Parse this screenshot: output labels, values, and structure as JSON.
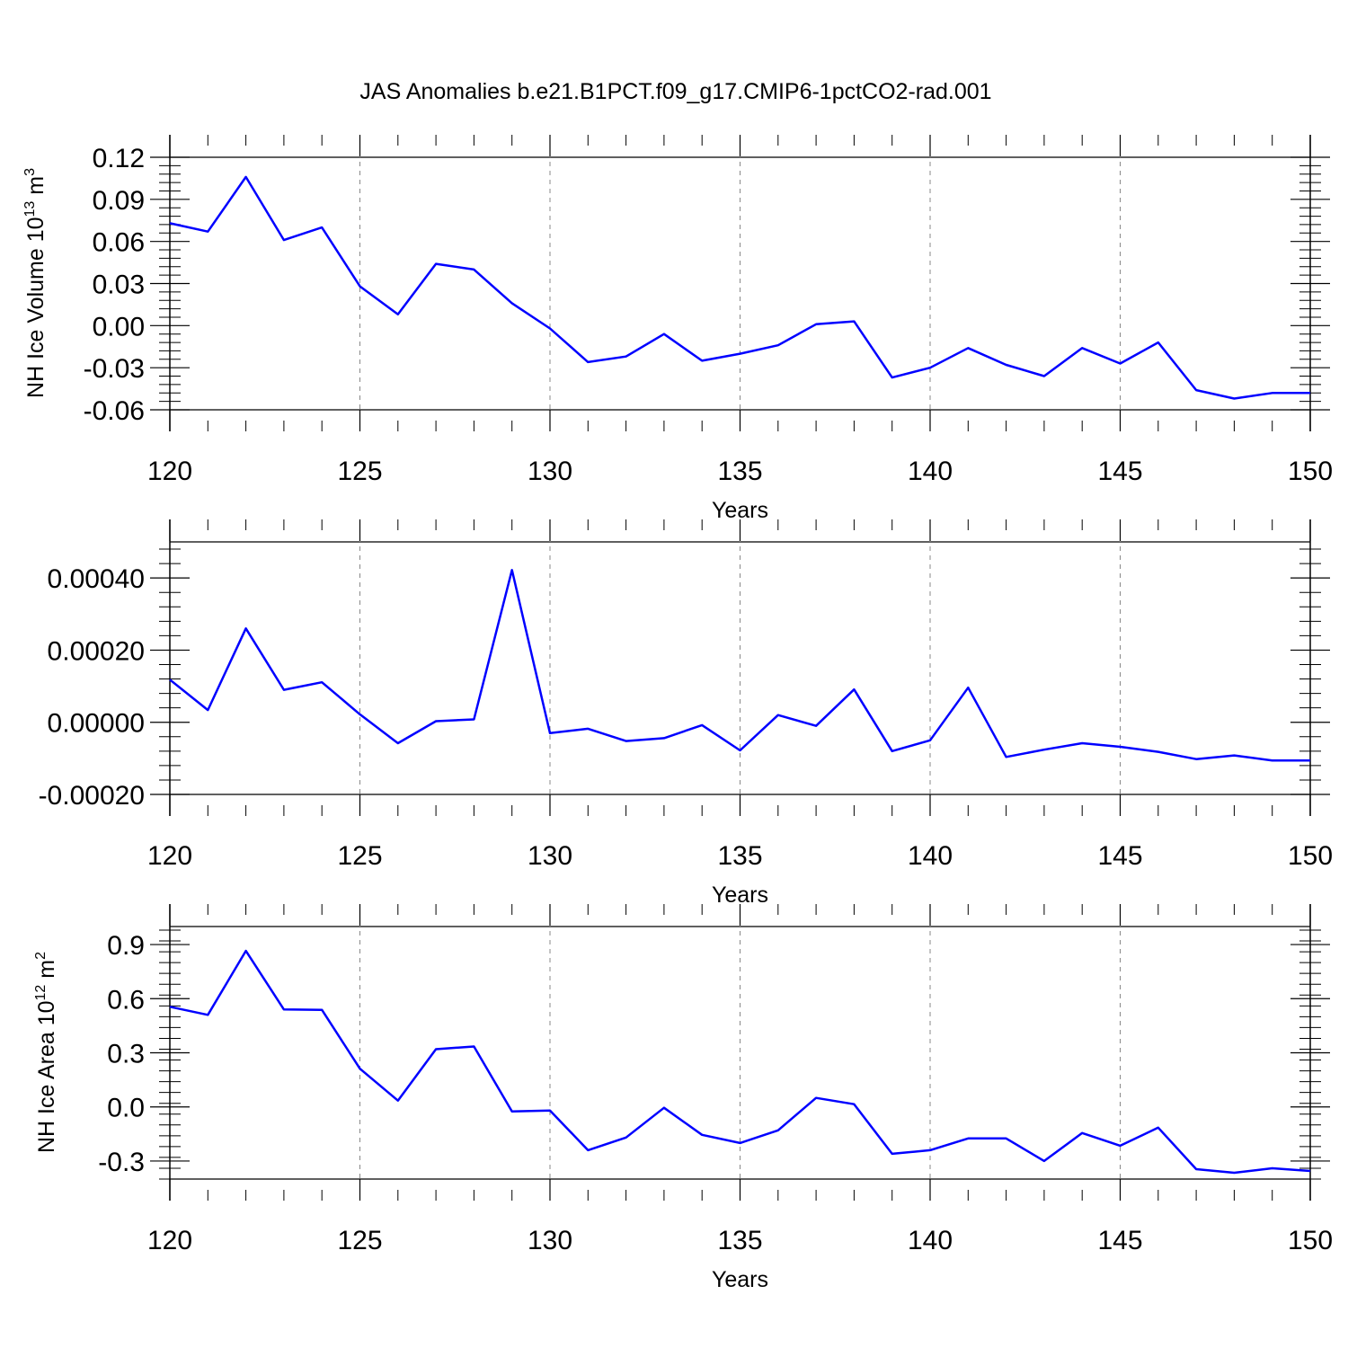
{
  "figure": {
    "title": "JAS Anomalies b.e21.B1PCT.f09_g17.CMIP6-1pctCO2-rad.001",
    "line_color": "#0000ff",
    "grid_color": "#888888",
    "axis_color": "#000000"
  },
  "chart_data": [
    {
      "type": "line",
      "title": "JAS Anomalies b.e21.B1PCT.f09_g17.CMIP6-1pctCO2-rad.001",
      "xlabel": "Years",
      "ylabel_parts": [
        "NH Ice Volume 10",
        "13",
        " m",
        "3"
      ],
      "xlim": [
        120,
        150
      ],
      "ylim": [
        -0.06,
        0.12
      ],
      "xticks": [
        "120",
        "125",
        "130",
        "135",
        "140",
        "145",
        "150"
      ],
      "yticks": [
        "0.12",
        "0.09",
        "0.06",
        "0.03",
        "0.00",
        "-0.03",
        "-0.06"
      ],
      "x": [
        120,
        121,
        122,
        123,
        124,
        125,
        126,
        127,
        128,
        129,
        130,
        131,
        132,
        133,
        134,
        135,
        136,
        137,
        138,
        139,
        140,
        141,
        142,
        143,
        144,
        145,
        146,
        147,
        148,
        149,
        150
      ],
      "values": [
        0.073,
        0.067,
        0.106,
        0.061,
        0.07,
        0.028,
        0.008,
        0.044,
        0.04,
        0.016,
        -0.002,
        -0.026,
        -0.022,
        -0.006,
        -0.025,
        -0.02,
        -0.014,
        0.001,
        0.003,
        -0.037,
        -0.03,
        -0.016,
        -0.028,
        -0.036,
        -0.016,
        -0.027,
        -0.012,
        -0.046,
        -0.052,
        -0.048,
        -0.048
      ]
    },
    {
      "type": "line",
      "title": "",
      "xlabel": "Years",
      "ylabel_parts": [],
      "xlim": [
        120,
        150
      ],
      "ylim": [
        -0.0002,
        0.0005
      ],
      "xticks": [
        "120",
        "125",
        "130",
        "135",
        "140",
        "145",
        "150"
      ],
      "yticks": [
        "0.00040",
        "0.00020",
        "0.00000",
        "-0.00020"
      ],
      "ytick_values": [
        0.0004,
        0.0002,
        0.0,
        -0.0002
      ],
      "x": [
        120,
        121,
        122,
        123,
        124,
        125,
        126,
        127,
        128,
        129,
        130,
        131,
        132,
        133,
        134,
        135,
        136,
        137,
        138,
        139,
        140,
        141,
        142,
        143,
        144,
        145,
        146,
        147,
        148,
        149,
        150
      ],
      "values": [
        0.000118,
        3.4e-05,
        0.00026,
        9e-05,
        0.000111,
        2.2e-05,
        -5.8e-05,
        3e-06,
        8e-06,
        0.000422,
        -3e-05,
        -1.8e-05,
        -5.2e-05,
        -4.4e-05,
        -8e-06,
        -7.8e-05,
        2e-05,
        -1e-05,
        9.1e-05,
        -8e-05,
        -5e-05,
        9.6e-05,
        -9.6e-05,
        -7.6e-05,
        -5.8e-05,
        -6.8e-05,
        -8.2e-05,
        -0.000102,
        -9.2e-05,
        -0.000106,
        -0.000106
      ]
    },
    {
      "type": "line",
      "title": "",
      "xlabel": "Years",
      "ylabel_parts": [
        "NH Ice Area 10",
        "12",
        " m",
        "2"
      ],
      "xlim": [
        120,
        150
      ],
      "ylim": [
        -0.4,
        1.0
      ],
      "xticks": [
        "120",
        "125",
        "130",
        "135",
        "140",
        "145",
        "150"
      ],
      "yticks": [
        "0.9",
        "0.6",
        "0.3",
        "0.0",
        "-0.3"
      ],
      "ytick_values": [
        0.9,
        0.6,
        0.3,
        0.0,
        -0.3
      ],
      "x": [
        120,
        121,
        122,
        123,
        124,
        125,
        126,
        127,
        128,
        129,
        130,
        131,
        132,
        133,
        134,
        135,
        136,
        137,
        138,
        139,
        140,
        141,
        142,
        143,
        144,
        145,
        146,
        147,
        148,
        149,
        150
      ],
      "values": [
        0.555,
        0.51,
        0.865,
        0.54,
        0.538,
        0.212,
        0.035,
        0.32,
        0.335,
        -0.025,
        -0.02,
        -0.24,
        -0.17,
        -0.005,
        -0.155,
        -0.2,
        -0.13,
        0.05,
        0.015,
        -0.26,
        -0.24,
        -0.175,
        -0.175,
        -0.3,
        -0.145,
        -0.215,
        -0.115,
        -0.345,
        -0.365,
        -0.34,
        -0.355
      ]
    }
  ]
}
